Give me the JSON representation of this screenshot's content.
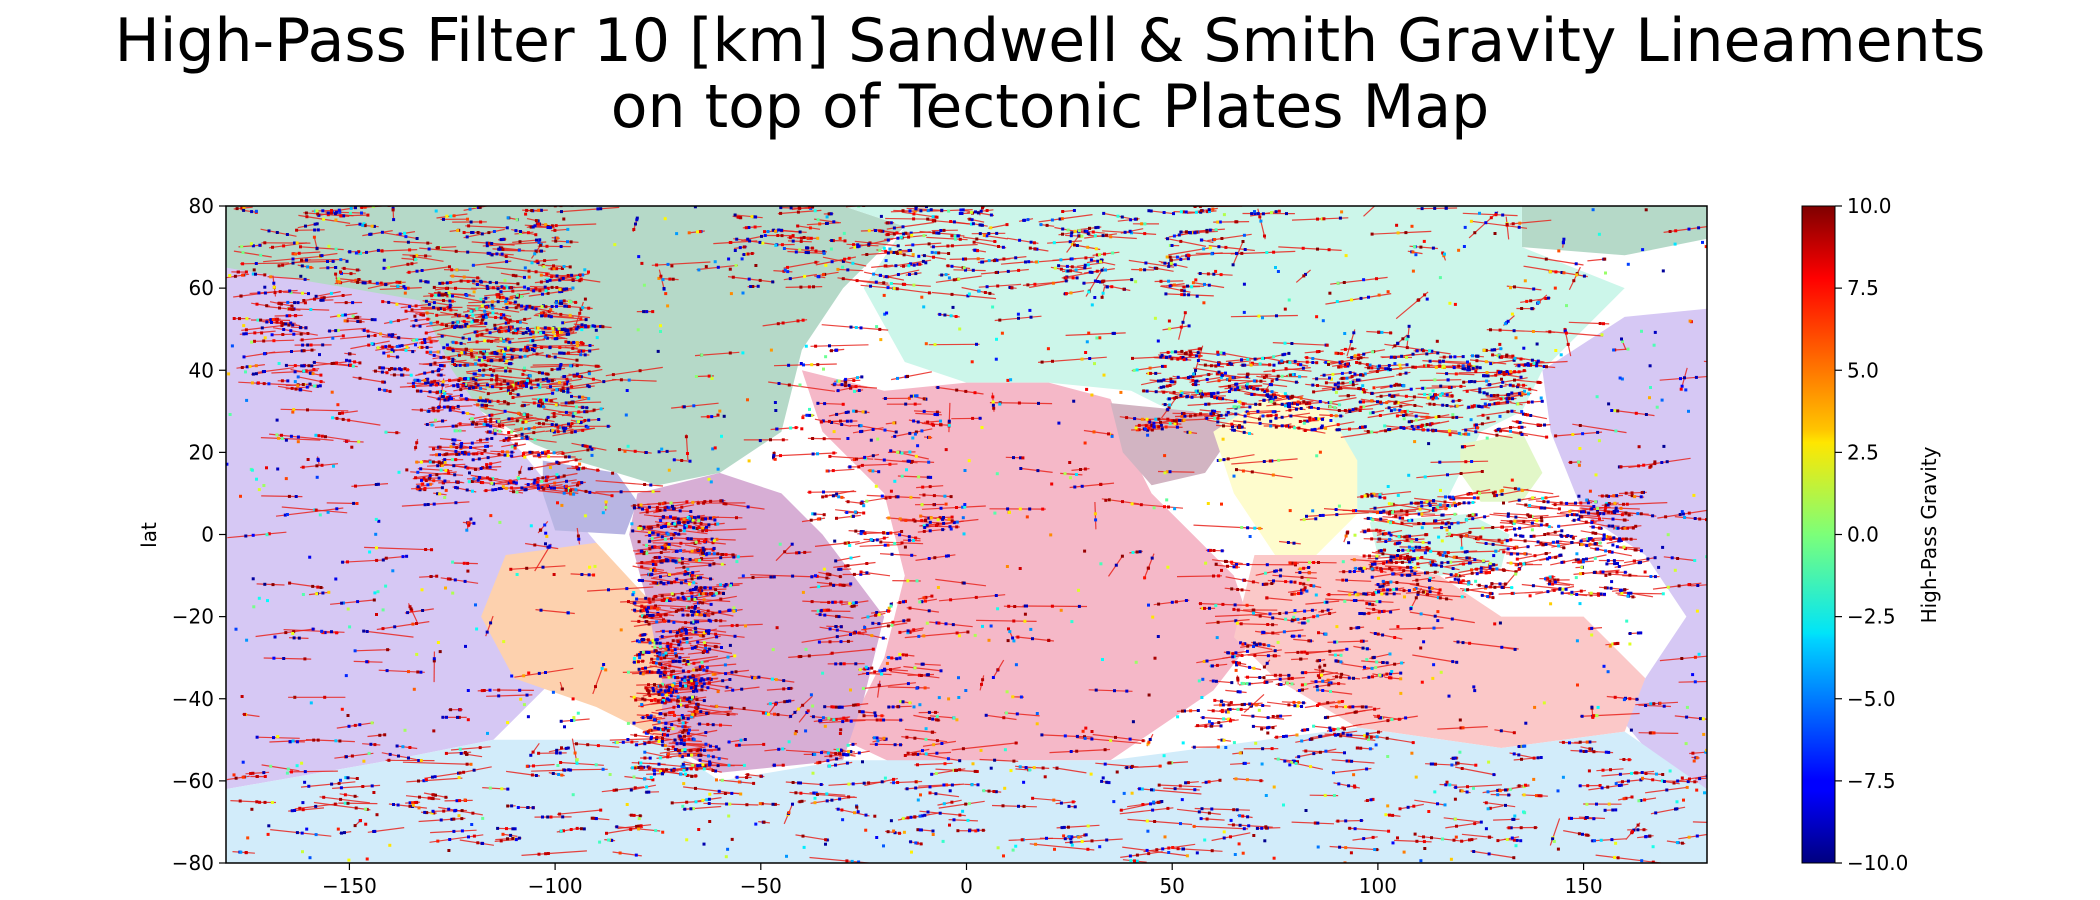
{
  "title_lines": [
    "High-Pass Filter 10 [km] Sandwell & Smith Gravity Lineaments",
    "on top of Tectonic Plates Map"
  ],
  "chart_data": {
    "type": "scatter",
    "title": "High-Pass Filter 10 [km] Sandwell & Smith Gravity Lineaments on top of Tectonic Plates Map",
    "xlabel": "",
    "ylabel": "lat",
    "xlim": [
      -180,
      180
    ],
    "ylim": [
      -80,
      80
    ],
    "xticks": [
      -150,
      -100,
      -50,
      0,
      50,
      100,
      150
    ],
    "yticks": [
      -80,
      -60,
      -40,
      -20,
      0,
      20,
      40,
      60,
      80
    ],
    "grid": false,
    "colorbar": {
      "label": "High-Pass Gravity",
      "colormap": "jet",
      "range": [
        -10.0,
        10.0
      ],
      "ticks": [
        -10.0,
        -7.5,
        -5.0,
        -2.5,
        0.0,
        2.5,
        5.0,
        7.5,
        10.0
      ],
      "tick_labels": [
        "−10.0",
        "−7.5",
        "−5.0",
        "−2.5",
        "0.0",
        "2.5",
        "5.0",
        "7.5",
        "10.0"
      ]
    },
    "lineament_color": "#e8231c",
    "plates": [
      {
        "color": "#d6c8f4",
        "polygon": [
          [
            -180,
            65
          ],
          [
            -133,
            60
          ],
          [
            -118,
            30
          ],
          [
            -108,
            20
          ],
          [
            -100,
            10
          ],
          [
            -90,
            -2
          ],
          [
            -92,
            -20
          ],
          [
            -100,
            -35
          ],
          [
            -115,
            -50
          ],
          [
            -140,
            -55
          ],
          [
            -180,
            -62
          ]
        ]
      },
      {
        "color": "#d6c8f4",
        "polygon": [
          [
            140,
            40
          ],
          [
            160,
            53
          ],
          [
            180,
            55
          ],
          [
            180,
            -62
          ],
          [
            170,
            -58
          ],
          [
            160,
            -46
          ],
          [
            165,
            -35
          ],
          [
            175,
            -20
          ],
          [
            165,
            -5
          ],
          [
            150,
            5
          ],
          [
            142,
            25
          ]
        ]
      },
      {
        "color": "#b5d9c8",
        "polygon": [
          [
            -180,
            80
          ],
          [
            -30,
            80
          ],
          [
            -15,
            75
          ],
          [
            -30,
            60
          ],
          [
            -40,
            45
          ],
          [
            -45,
            25
          ],
          [
            -60,
            15
          ],
          [
            -75,
            12
          ],
          [
            -85,
            15
          ],
          [
            -95,
            18
          ],
          [
            -105,
            22
          ],
          [
            -118,
            30
          ],
          [
            -125,
            40
          ],
          [
            -133,
            57
          ],
          [
            -150,
            60
          ],
          [
            -180,
            65
          ]
        ]
      },
      {
        "color": "#b5d9c8",
        "polygon": [
          [
            135,
            70
          ],
          [
            160,
            68
          ],
          [
            180,
            72
          ],
          [
            180,
            80
          ],
          [
            135,
            80
          ]
        ]
      },
      {
        "color": "#ccf6ea",
        "polygon": [
          [
            -30,
            80
          ],
          [
            135,
            80
          ],
          [
            135,
            70
          ],
          [
            160,
            60
          ],
          [
            150,
            50
          ],
          [
            140,
            40
          ],
          [
            135,
            30
          ],
          [
            125,
            25
          ],
          [
            120,
            15
          ],
          [
            115,
            5
          ],
          [
            95,
            5
          ],
          [
            75,
            8
          ],
          [
            60,
            25
          ],
          [
            40,
            35
          ],
          [
            20,
            37
          ],
          [
            0,
            37
          ],
          [
            -15,
            42
          ],
          [
            -25,
            60
          ],
          [
            -15,
            75
          ]
        ]
      },
      {
        "color": "#f5b8c8",
        "polygon": [
          [
            -40,
            40
          ],
          [
            -20,
            35
          ],
          [
            0,
            37
          ],
          [
            20,
            37
          ],
          [
            35,
            33
          ],
          [
            40,
            20
          ],
          [
            45,
            10
          ],
          [
            55,
            0
          ],
          [
            65,
            -10
          ],
          [
            70,
            -25
          ],
          [
            60,
            -38
          ],
          [
            35,
            -55
          ],
          [
            10,
            -55
          ],
          [
            -15,
            -57
          ],
          [
            -30,
            -50
          ],
          [
            -20,
            -30
          ],
          [
            -15,
            -10
          ],
          [
            -20,
            10
          ],
          [
            -35,
            25
          ]
        ]
      },
      {
        "color": "#d7aed5",
        "polygon": [
          [
            -80,
            10
          ],
          [
            -60,
            15
          ],
          [
            -45,
            10
          ],
          [
            -35,
            0
          ],
          [
            -20,
            -20
          ],
          [
            -25,
            -40
          ],
          [
            -30,
            -55
          ],
          [
            -60,
            -58
          ],
          [
            -75,
            -50
          ],
          [
            -75,
            -35
          ],
          [
            -78,
            -15
          ],
          [
            -82,
            0
          ]
        ]
      },
      {
        "color": "#fdd1ae",
        "polygon": [
          [
            -112,
            -5
          ],
          [
            -90,
            -2
          ],
          [
            -78,
            -15
          ],
          [
            -74,
            -35
          ],
          [
            -74,
            -50
          ],
          [
            -90,
            -42
          ],
          [
            -110,
            -35
          ],
          [
            -118,
            -20
          ]
        ]
      },
      {
        "color": "#b8b5e3",
        "polygon": [
          [
            -103,
            18
          ],
          [
            -85,
            15
          ],
          [
            -80,
            8
          ],
          [
            -83,
            0
          ],
          [
            -100,
            1
          ],
          [
            -103,
            10
          ]
        ]
      },
      {
        "color": "#d2b4c2",
        "polygon": [
          [
            35,
            32
          ],
          [
            55,
            30
          ],
          [
            65,
            25
          ],
          [
            58,
            15
          ],
          [
            45,
            12
          ],
          [
            38,
            20
          ]
        ]
      },
      {
        "color": "#fefccd",
        "polygon": [
          [
            60,
            25
          ],
          [
            75,
            35
          ],
          [
            88,
            30
          ],
          [
            95,
            18
          ],
          [
            95,
            5
          ],
          [
            85,
            -5
          ],
          [
            75,
            -5
          ],
          [
            65,
            10
          ]
        ]
      },
      {
        "color": "#fbc8c8",
        "polygon": [
          [
            70,
            -5
          ],
          [
            95,
            -5
          ],
          [
            115,
            -10
          ],
          [
            130,
            -20
          ],
          [
            150,
            -20
          ],
          [
            165,
            -35
          ],
          [
            160,
            -48
          ],
          [
            130,
            -52
          ],
          [
            95,
            -47
          ],
          [
            75,
            -35
          ],
          [
            65,
            -25
          ]
        ]
      },
      {
        "color": "#ccf6ea",
        "polygon": [
          [
            98,
            3
          ],
          [
            122,
            5
          ],
          [
            132,
            0
          ],
          [
            130,
            -8
          ],
          [
            115,
            -10
          ],
          [
            100,
            -5
          ]
        ]
      },
      {
        "color": "#e2f7c8",
        "polygon": [
          [
            120,
            22
          ],
          [
            135,
            25
          ],
          [
            140,
            15
          ],
          [
            135,
            8
          ],
          [
            125,
            8
          ],
          [
            120,
            15
          ]
        ]
      },
      {
        "color": "#d2ecfa",
        "polygon": [
          [
            -180,
            -62
          ],
          [
            -140,
            -55
          ],
          [
            -115,
            -50
          ],
          [
            -75,
            -50
          ],
          [
            -60,
            -60
          ],
          [
            -30,
            -55
          ],
          [
            10,
            -55
          ],
          [
            35,
            -55
          ],
          [
            95,
            -47
          ],
          [
            130,
            -52
          ],
          [
            160,
            -48
          ],
          [
            180,
            -62
          ],
          [
            180,
            -80
          ],
          [
            -180,
            -80
          ]
        ]
      }
    ],
    "lineament_zones": [
      {
        "name": "pacific-northwest",
        "lon_range": [
          -180,
          -100
        ],
        "lat_range": [
          35,
          80
        ],
        "density": 1.4
      },
      {
        "name": "cordillera",
        "lon_range": [
          -135,
          -95
        ],
        "lat_range": [
          10,
          60
        ],
        "density": 1.8
      },
      {
        "name": "andes",
        "lon_range": [
          -82,
          -65
        ],
        "lat_range": [
          -58,
          8
        ],
        "density": 1.8
      },
      {
        "name": "southern-ring",
        "lon_range": [
          -180,
          180
        ],
        "lat_range": [
          -75,
          -50
        ],
        "density": 1.2
      },
      {
        "name": "alpide",
        "lon_range": [
          40,
          135
        ],
        "lat_range": [
          25,
          45
        ],
        "density": 1.6
      },
      {
        "name": "arctic",
        "lon_range": [
          -60,
          60
        ],
        "lat_range": [
          60,
          80
        ],
        "density": 1.0
      },
      {
        "name": "indonesia",
        "lon_range": [
          95,
          160
        ],
        "lat_range": [
          -15,
          10
        ],
        "density": 1.3
      },
      {
        "name": "mid-atlantic",
        "lon_range": [
          -40,
          -10
        ],
        "lat_range": [
          -55,
          40
        ],
        "density": 0.8
      },
      {
        "name": "indian-ridge",
        "lon_range": [
          55,
          100
        ],
        "lat_range": [
          -50,
          -5
        ],
        "density": 0.7
      }
    ]
  }
}
